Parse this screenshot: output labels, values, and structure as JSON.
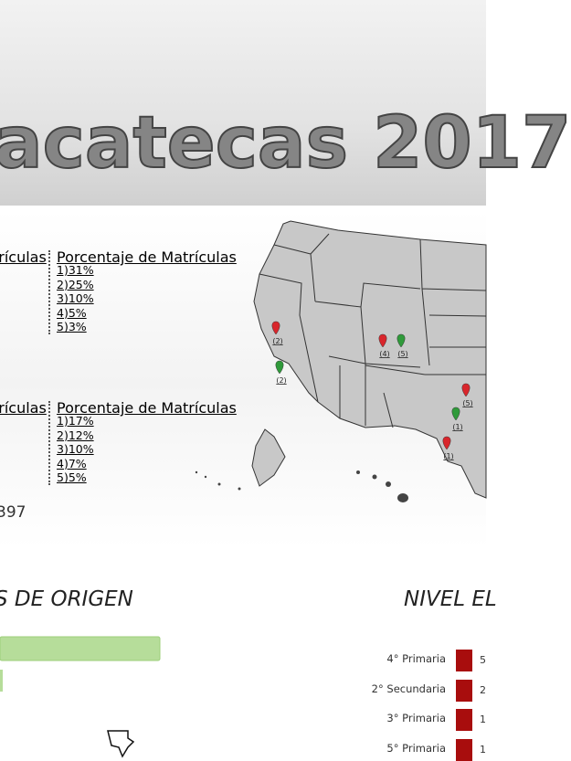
{
  "header": {
    "title": "acatecas 2017"
  },
  "lists": [
    {
      "left_header": "trículas",
      "right_header": "Porcentaje de Matrículas",
      "items": [
        "1)31%",
        "2)25%",
        "3)10%",
        "4)5%",
        "5)3%"
      ]
    },
    {
      "left_header": "trículas",
      "right_header": "Porcentaje de Matrículas",
      "items": [
        "1)17%",
        "2)12%",
        "3)10%",
        "4)7%",
        "5)5%"
      ]
    }
  ],
  "total": "397",
  "map": {
    "markers": [
      {
        "label": "(2)",
        "color": "red"
      },
      {
        "label": "(2)",
        "color": "green"
      },
      {
        "label": "(4)",
        "color": "red"
      },
      {
        "label": "(5)",
        "color": "green"
      },
      {
        "label": "(5)",
        "color": "red"
      },
      {
        "label": "(1)",
        "color": "green"
      },
      {
        "label": "(1)",
        "color": "red"
      }
    ]
  },
  "sections": {
    "origin": "S DE ORIGEN",
    "level": "NIVEL EL"
  },
  "levels": [
    {
      "label": "4° Primaria",
      "value": "5"
    },
    {
      "label": "2° Secundaria",
      "value": "2"
    },
    {
      "label": "3° Primaria",
      "value": "1"
    },
    {
      "label": "5° Primaria",
      "value": "1"
    }
  ]
}
